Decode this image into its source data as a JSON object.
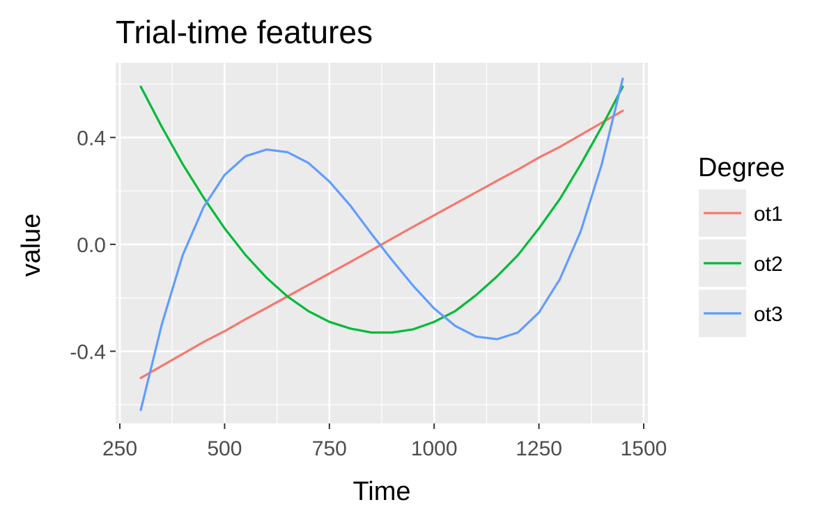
{
  "chart_data": {
    "type": "line",
    "title": "Trial-time features",
    "xlabel": "Time",
    "ylabel": "value",
    "xlim": [
      240,
      1510
    ],
    "ylim": [
      -0.67,
      0.68
    ],
    "x_ticks": [
      250,
      500,
      750,
      1000,
      1250,
      1500
    ],
    "x_tick_labels": [
      "250",
      "500",
      "750",
      "1000",
      "1250",
      "1500"
    ],
    "y_ticks": [
      -0.4,
      0.0,
      0.4
    ],
    "y_tick_labels": [
      "-0.4",
      "0.0",
      "0.4"
    ],
    "grid": true,
    "legend": {
      "title": "Degree",
      "position": "right"
    },
    "x": [
      300,
      350,
      400,
      450,
      500,
      550,
      600,
      650,
      700,
      750,
      800,
      850,
      900,
      950,
      1000,
      1050,
      1100,
      1150,
      1200,
      1250,
      1300,
      1350,
      1400,
      1450
    ],
    "series": [
      {
        "name": "ot1",
        "color": "#F8766D",
        "values": [
          -0.5,
          -0.455,
          -0.41,
          -0.365,
          -0.325,
          -0.28,
          -0.238,
          -0.195,
          -0.152,
          -0.109,
          -0.066,
          -0.022,
          0.022,
          0.066,
          0.109,
          0.152,
          0.195,
          0.238,
          0.28,
          0.325,
          0.365,
          0.41,
          0.455,
          0.5
        ]
      },
      {
        "name": "ot2",
        "color": "#00BA38",
        "values": [
          0.59,
          0.44,
          0.3,
          0.175,
          0.06,
          -0.04,
          -0.125,
          -0.195,
          -0.25,
          -0.29,
          -0.315,
          -0.33,
          -0.33,
          -0.318,
          -0.29,
          -0.25,
          -0.19,
          -0.12,
          -0.04,
          0.06,
          0.17,
          0.3,
          0.44,
          0.59
        ]
      },
      {
        "name": "ot3",
        "color": "#619CFF",
        "values": [
          -0.62,
          -0.3,
          -0.04,
          0.14,
          0.26,
          0.33,
          0.355,
          0.345,
          0.305,
          0.235,
          0.145,
          0.04,
          -0.06,
          -0.155,
          -0.24,
          -0.305,
          -0.345,
          -0.355,
          -0.33,
          -0.255,
          -0.13,
          0.05,
          0.3,
          0.62
        ]
      }
    ]
  }
}
